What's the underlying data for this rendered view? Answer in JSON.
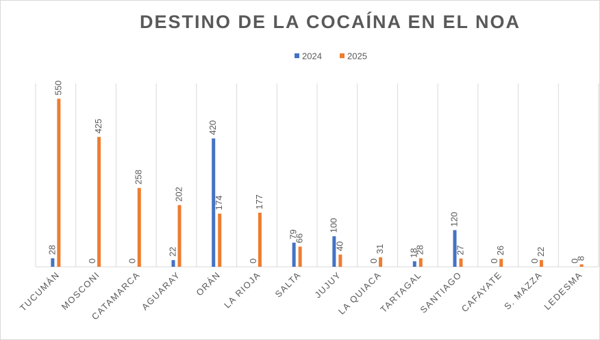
{
  "chart_data": {
    "type": "bar",
    "title": "DESTINO DE LA COCAÍNA EN EL NOA",
    "categories": [
      "TUCUMÁN",
      "MOSCONI",
      "CATAMARCA",
      "AGUARAY",
      "ORÁN",
      "LA RIOJA",
      "SALTA",
      "JUJUY",
      "LA QUIACA",
      "TARTAGAL",
      "SANTIAGO",
      "CAFAYATE",
      "S. MAZZA",
      "LEDESMA"
    ],
    "series": [
      {
        "name": "2024",
        "color": "#4472c4",
        "values": [
          28,
          0,
          0,
          22,
          420,
          0,
          79,
          100,
          0,
          18,
          120,
          0,
          0,
          0
        ]
      },
      {
        "name": "2025",
        "color": "#ed7d31",
        "values": [
          550,
          425,
          258,
          202,
          174,
          177,
          66,
          40,
          31,
          28,
          27,
          26,
          22,
          8
        ]
      }
    ],
    "ylim": [
      0,
      600
    ],
    "grid": true,
    "legend": "top"
  }
}
